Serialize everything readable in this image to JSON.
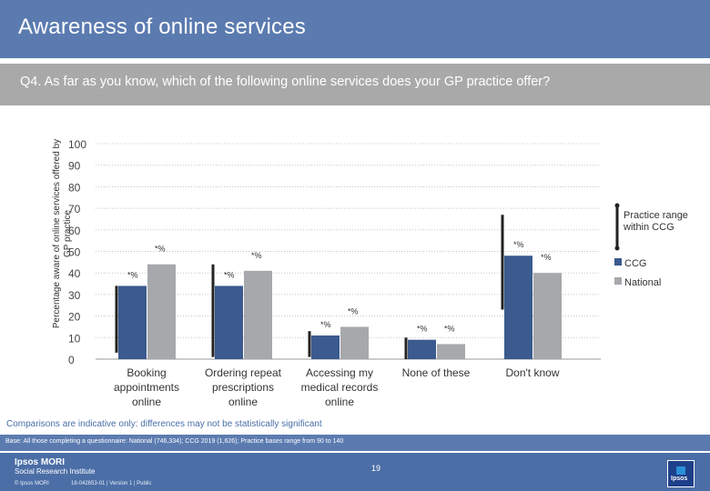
{
  "header": {
    "title": "Awareness of online services",
    "question": "Q4. As far as you know, which of the following online services does your GP practice offer?"
  },
  "chart_data": {
    "type": "bar",
    "ylabel": "Percentage aware of online services offered by GP practice",
    "ylim": [
      0,
      100
    ],
    "yticks": [
      0,
      10,
      20,
      30,
      40,
      50,
      60,
      70,
      80,
      90,
      100
    ],
    "grid": true,
    "categories": [
      [
        "Booking",
        "appointments",
        "online"
      ],
      [
        "Ordering repeat",
        "prescriptions",
        "online"
      ],
      [
        "Accessing my",
        "medical records",
        "online"
      ],
      [
        "None of these"
      ],
      [
        "Don't know"
      ]
    ],
    "series": [
      {
        "name": "CCG",
        "color": "#3b5a8e",
        "values": [
          34,
          34,
          11,
          9,
          48
        ],
        "labels": [
          "*%",
          "*%",
          "*%",
          "*%",
          "*%"
        ]
      },
      {
        "name": "National",
        "color": "#a6a8ab",
        "values": [
          44,
          41,
          15,
          7,
          40
        ],
        "labels": [
          "*%",
          "*%",
          "*%",
          "*%",
          "*%"
        ]
      }
    ],
    "practice_range": [
      [
        3,
        34
      ],
      [
        1,
        44
      ],
      [
        1,
        13
      ],
      [
        0,
        10
      ],
      [
        23,
        67
      ]
    ],
    "legend": {
      "placement": "right",
      "range_label": [
        "Practice range",
        "within CCG"
      ]
    }
  },
  "notes": {
    "comparison": "Comparisons are indicative only: differences may not be statistically significant",
    "base": "Base: All those completing a questionnaire: National (746,334); CCG 2019 (1,626); Practice bases range from 90 to 140"
  },
  "footer": {
    "brand": "Ipsos MORI",
    "sub": "Social Research Institute",
    "page": "19",
    "copyright": "© Ipsos MORI",
    "job": "18-042653-01 | Version 1 | Public"
  },
  "colors": {
    "header": "#5b7bb0",
    "question_bar": "#a9a9a9",
    "footer": "#4b6ea6"
  }
}
